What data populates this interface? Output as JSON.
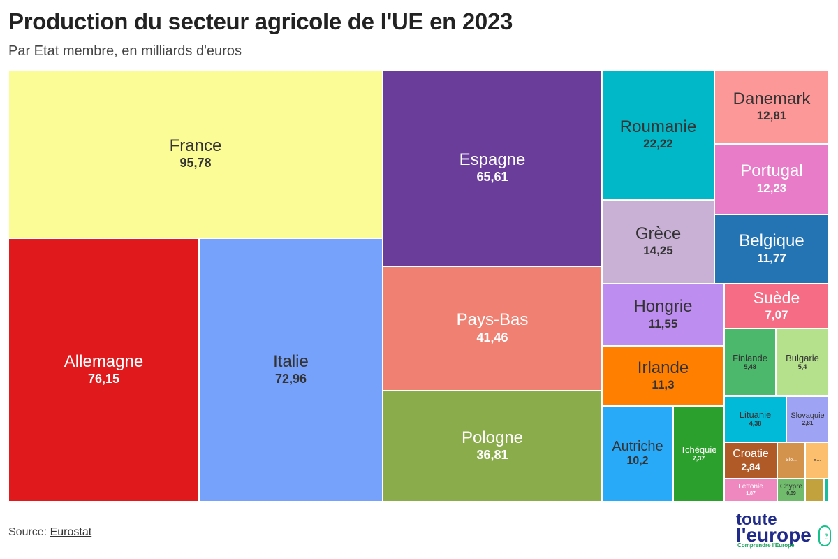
{
  "header": {
    "title": "Production du secteur agricole de l'UE en 2023",
    "subtitle": "Par Etat membre, en milliards d'euros"
  },
  "footer": {
    "source_prefix": "Source: ",
    "source_link": "Eurostat"
  },
  "logo": {
    "line1": "toute",
    "line2": "l'europe",
    "tagline": "Comprendre l'Europe",
    "badge": ".eu"
  },
  "chart_data": {
    "type": "treemap",
    "title": "Production du secteur agricole de l'UE en 2023",
    "subtitle": "Par Etat membre, en milliards d'euros",
    "items": [
      {
        "name": "France",
        "value": 95.78,
        "label": "95,78",
        "color": "#fcfc96",
        "text_color": "#333333"
      },
      {
        "name": "Allemagne",
        "value": 76.15,
        "label": "76,15",
        "color": "#e01a1c",
        "text_color": "#ffffff"
      },
      {
        "name": "Italie",
        "value": 72.96,
        "label": "72,96",
        "color": "#77a2fc",
        "text_color": "#333333"
      },
      {
        "name": "Espagne",
        "value": 65.61,
        "label": "65,61",
        "color": "#6a3d9a",
        "text_color": "#ffffff"
      },
      {
        "name": "Pays-Bas",
        "value": 41.46,
        "label": "41,46",
        "color": "#f08172",
        "text_color": "#ffffff"
      },
      {
        "name": "Pologne",
        "value": 36.81,
        "label": "36,81",
        "color": "#8bac4a",
        "text_color": "#ffffff"
      },
      {
        "name": "Roumanie",
        "value": 22.22,
        "label": "22,22",
        "color": "#00b8c8",
        "text_color": "#333333"
      },
      {
        "name": "Grèce",
        "value": 14.25,
        "label": "14,25",
        "color": "#c9b1d6",
        "text_color": "#333333"
      },
      {
        "name": "Danemark",
        "value": 12.81,
        "label": "12,81",
        "color": "#fc9898",
        "text_color": "#333333"
      },
      {
        "name": "Portugal",
        "value": 12.23,
        "label": "12,23",
        "color": "#e87cc8",
        "text_color": "#ffffff"
      },
      {
        "name": "Belgique",
        "value": 11.77,
        "label": "11,77",
        "color": "#2474b4",
        "text_color": "#ffffff"
      },
      {
        "name": "Hongrie",
        "value": 11.55,
        "label": "11,55",
        "color": "#bd8ef0",
        "text_color": "#333333"
      },
      {
        "name": "Irlande",
        "value": 11.3,
        "label": "11,3",
        "color": "#ff7f00",
        "text_color": "#333333"
      },
      {
        "name": "Autriche",
        "value": 10.2,
        "label": "10,2",
        "color": "#28aaf8",
        "text_color": "#333333"
      },
      {
        "name": "Tchéquie",
        "value": 7.37,
        "label": "7,37",
        "color": "#2ca02c",
        "text_color": "#ffffff"
      },
      {
        "name": "Suède",
        "value": 7.07,
        "label": "7,07",
        "color": "#f56c84",
        "text_color": "#ffffff"
      },
      {
        "name": "Finlande",
        "value": 5.48,
        "label": "5,48",
        "color": "#4cb86c",
        "text_color": "#333333"
      },
      {
        "name": "Bulgarie",
        "value": 5.4,
        "label": "5,4",
        "color": "#b5e08c",
        "text_color": "#333333"
      },
      {
        "name": "Lituanie",
        "value": 4.38,
        "label": "4,38",
        "color": "#00bad8",
        "text_color": "#333333"
      },
      {
        "name": "Slovaquie",
        "value": 2.81,
        "label": "2,81",
        "color": "#9ea3f4",
        "text_color": "#333333"
      },
      {
        "name": "Croatie",
        "value": 2.84,
        "label": "2,84",
        "color": "#b05a28",
        "text_color": "#ffffff"
      },
      {
        "name": "Slo...",
        "value": null,
        "label": "",
        "color": "#d4934c",
        "text_color": "#ffffff"
      },
      {
        "name": "E...",
        "value": null,
        "label": "",
        "color": "#fbbf6e",
        "text_color": "#333333"
      },
      {
        "name": "Lettonie",
        "value": 1.87,
        "label": "1,87",
        "color": "#f088c0",
        "text_color": "#ffffff"
      },
      {
        "name": "Chypre",
        "value": 0.89,
        "label": "0,89",
        "color": "#70bc6c",
        "text_color": "#333333"
      },
      {
        "name": "",
        "value": null,
        "label": "",
        "color": "#c2a23c",
        "text_color": "#333333"
      },
      {
        "name": "",
        "value": null,
        "label": "",
        "color": "#1abc9c",
        "text_color": "#333333"
      }
    ]
  }
}
